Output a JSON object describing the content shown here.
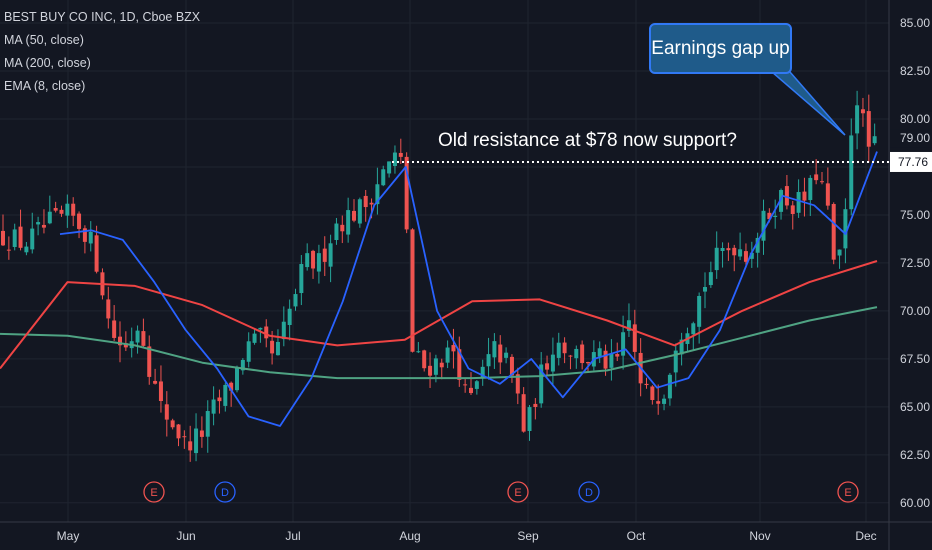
{
  "chart_data": {
    "type": "candlestick",
    "title": "BEST BUY CO INC, 1D, Cboe BZX",
    "ylim": [
      59.5,
      86.0
    ],
    "y_ticks": [
      "60.00",
      "62.50",
      "65.00",
      "67.50",
      "70.00",
      "72.50",
      "75.00",
      "77.50",
      "80.00",
      "82.50",
      "85.00"
    ],
    "x_ticks": [
      "May",
      "Jun",
      "Jul",
      "Aug",
      "Sep",
      "Oct",
      "Nov",
      "Dec"
    ],
    "price_labels": {
      "last": "79.00",
      "level": "77.76"
    },
    "legend": [
      "MA (50, close)",
      "MA (200, close)",
      "EMA (8, close)"
    ],
    "annotations": {
      "callout": "Earnings gap up",
      "resistance": "Old resistance at $78 now support?"
    },
    "events": [
      "E",
      "D",
      "E",
      "D",
      "E"
    ],
    "resistance_level": 77.76,
    "colors": {
      "up": "#26a69a",
      "down": "#ef5350",
      "ma50": "#ef4444",
      "ma200": "#4fa383",
      "ema8": "#2962ff",
      "background": "#131722"
    },
    "series": [
      {
        "name": "MA (50, close)",
        "values": [
          67.0,
          71.5,
          71.3,
          70.3,
          68.7,
          68.2,
          68.5,
          70.5,
          70.6,
          69.5,
          68.2,
          70.0,
          71.5,
          72.6
        ]
      },
      {
        "name": "MA (200, close)",
        "values": [
          68.8,
          68.7,
          68.2,
          67.3,
          66.8,
          66.5,
          66.5,
          66.5,
          66.6,
          66.9,
          67.7,
          68.6,
          69.5,
          70.2
        ]
      },
      {
        "name": "EMA (8, close)",
        "values": [
          74.0,
          74.2,
          73.7,
          71.5,
          69.0,
          67.0,
          64.5,
          64.0,
          66.5,
          70.5,
          75.5,
          77.5,
          70.0,
          67.0,
          66.2,
          67.5,
          65.5,
          67.5,
          68.0,
          66.0,
          66.5,
          69.0,
          73.0,
          76.0,
          75.5,
          74.0,
          78.3
        ]
      }
    ]
  }
}
